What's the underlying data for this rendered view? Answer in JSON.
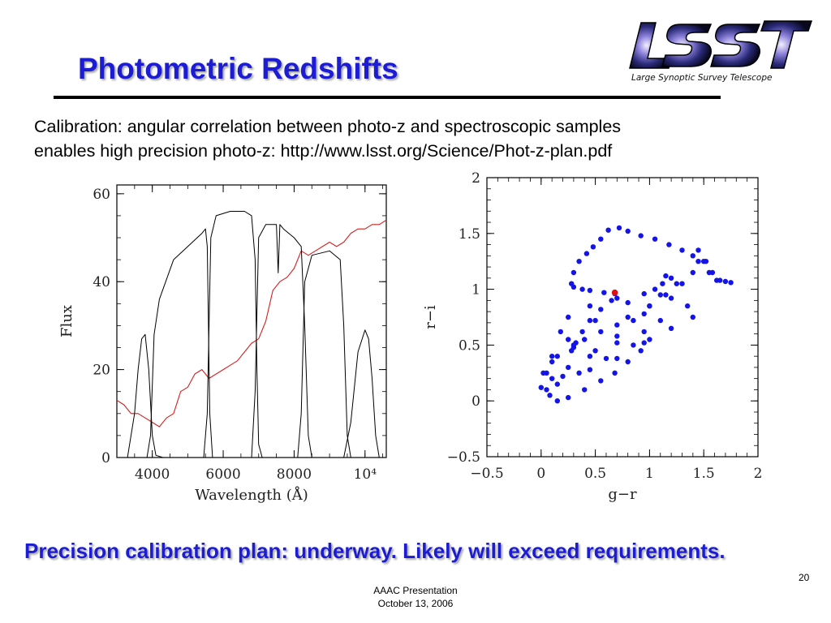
{
  "slide": {
    "title": "Photometric Redshifts",
    "intro_line1": "Calibration: angular correlation between photo-z and spectroscopic samples",
    "intro_line2": "enables high precision photo-z:   http://www.lsst.org/Science/Phot-z-plan.pdf",
    "conclusion": "Precision calibration plan:  underway.  Likely will exceed requirements.",
    "page_number": "20",
    "footer_line1": "AAAC Presentation",
    "footer_line2": "October 13, 2006",
    "logo_text": "LSST",
    "logo_tagline": "Large Synoptic Survey Telescope"
  },
  "colors": {
    "title": "#1c1cd4",
    "spectrum": "#d42020",
    "track": "#1414e6",
    "marker": "#e01010"
  },
  "chart_data": [
    {
      "type": "line",
      "xlabel": "Wavelength (Å)",
      "ylabel": "Flux",
      "xlim": [
        3000,
        10600
      ],
      "ylim": [
        0,
        62
      ],
      "x_ticks": [
        4000,
        6000,
        8000,
        10000
      ],
      "x_tick_labels": [
        "4000",
        "6000",
        "8000",
        "10⁴"
      ],
      "y_ticks": [
        0,
        20,
        40,
        60
      ],
      "y_tick_labels": [
        "0",
        "20",
        "40",
        "60"
      ],
      "series": [
        {
          "role": "spectrum",
          "color": "#d42020",
          "x": [
            3000,
            3200,
            3400,
            3600,
            3800,
            4000,
            4200,
            4400,
            4600,
            4800,
            5000,
            5200,
            5400,
            5600,
            5800,
            6000,
            6200,
            6400,
            6600,
            6800,
            7000,
            7200,
            7400,
            7600,
            7800,
            8000,
            8200,
            8400,
            8600,
            8800,
            9000,
            9200,
            9400,
            9600,
            9800,
            10000,
            10200,
            10400,
            10600
          ],
          "y": [
            13,
            12,
            10,
            10,
            9,
            8,
            7,
            9,
            10,
            15,
            16,
            19,
            20,
            18,
            19,
            20,
            21,
            22,
            24,
            26,
            27,
            31,
            38,
            40,
            41,
            43,
            47,
            46,
            47,
            48,
            49,
            48,
            49,
            51,
            52,
            52,
            53,
            53,
            54
          ]
        },
        {
          "role": "filter-u",
          "color": "#000000",
          "x": [
            3000,
            3300,
            3500,
            3600,
            3700,
            3800,
            3900,
            4000,
            4100,
            4300,
            10600
          ],
          "y": [
            0,
            0,
            10,
            20,
            27,
            28,
            20,
            5,
            0.5,
            0,
            0
          ]
        },
        {
          "role": "filter-g",
          "color": "#000000",
          "x": [
            3000,
            3850,
            3950,
            4050,
            4200,
            4600,
            5000,
            5400,
            5500,
            5550,
            5620,
            5700,
            5800,
            10600
          ],
          "y": [
            0,
            0,
            5,
            28,
            36,
            45,
            48,
            51,
            52,
            48,
            10,
            0,
            0,
            0
          ]
        },
        {
          "role": "filter-r",
          "color": "#000000",
          "x": [
            3000,
            5450,
            5550,
            5650,
            5800,
            6200,
            6600,
            6800,
            6900,
            6950,
            7000,
            7100,
            10600
          ],
          "y": [
            0,
            0,
            10,
            50,
            55,
            56,
            56,
            55,
            45,
            20,
            3,
            0,
            0
          ]
        },
        {
          "role": "filter-i",
          "color": "#000000",
          "x": [
            3000,
            6800,
            6900,
            7000,
            7200,
            7500,
            7550,
            7600,
            7700,
            8000,
            8200,
            8300,
            8400,
            8500,
            10600
          ],
          "y": [
            0,
            0,
            15,
            50,
            53,
            53,
            42,
            53,
            52,
            50,
            48,
            30,
            5,
            0,
            0
          ]
        },
        {
          "role": "filter-z",
          "color": "#000000",
          "x": [
            3000,
            8100,
            8200,
            8300,
            8500,
            9000,
            9300,
            9400,
            9500,
            9600,
            10600
          ],
          "y": [
            0,
            0,
            10,
            40,
            46,
            47,
            45,
            30,
            5,
            0,
            0
          ]
        },
        {
          "role": "filter-y",
          "color": "#000000",
          "x": [
            3000,
            9400,
            9600,
            9800,
            10000,
            10100,
            10200,
            10300,
            10400,
            10600
          ],
          "y": [
            0,
            0,
            8,
            24,
            29,
            27,
            18,
            5,
            0,
            0
          ]
        }
      ]
    },
    {
      "type": "scatter",
      "xlabel": "g−r",
      "ylabel": "r−i",
      "xlim": [
        -0.5,
        2
      ],
      "ylim": [
        -0.5,
        2
      ],
      "x_ticks": [
        -0.5,
        0,
        0.5,
        1,
        1.5,
        2
      ],
      "x_tick_labels": [
        "−0.5",
        "0",
        "0.5",
        "1",
        "1.5",
        "2"
      ],
      "y_ticks": [
        -0.5,
        0,
        0.5,
        1,
        1.5,
        2
      ],
      "y_tick_labels": [
        "−0.5",
        "0",
        "0.5",
        "1",
        "1.5",
        "2"
      ],
      "series": [
        {
          "role": "color-track",
          "color": "#1414e6",
          "x": [
            0.0,
            0.08,
            0.15,
            0.25,
            0.4,
            0.55,
            0.68,
            0.8,
            0.92,
            1.0,
            0.85,
            0.6,
            0.35,
            0.15,
            0.05,
            0.1,
            0.25,
            0.45,
            0.7,
            0.95,
            1.1,
            0.95,
            0.7,
            0.4,
            0.15,
            0.02,
            0.1,
            0.3,
            0.55,
            0.8,
            1.0,
            1.15,
            1.25,
            1.05,
            0.8,
            0.5,
            0.25,
            0.1,
            0.05,
            0.2,
            0.45,
            0.7,
            0.95,
            1.2,
            1.4,
            1.35,
            1.2,
            0.95,
            0.7,
            0.45,
            0.25,
            0.18,
            0.3,
            0.5,
            0.7,
            0.85,
            1.0,
            1.1,
            1.12,
            1.15,
            1.2,
            1.3,
            1.4,
            1.45,
            1.45,
            1.52,
            1.55,
            1.62,
            1.7,
            1.75,
            1.65,
            1.58,
            1.5,
            1.4,
            1.3,
            1.18,
            1.05,
            0.92,
            0.8,
            0.72,
            0.62,
            0.55,
            0.48,
            0.42,
            0.35,
            0.3,
            0.28,
            0.3,
            0.38,
            0.45,
            0.58,
            0.68,
            0.65,
            0.55,
            0.45,
            0.38,
            0.32,
            0.28
          ],
          "y": [
            0.12,
            0.05,
            0.0,
            0.03,
            0.1,
            0.18,
            0.25,
            0.35,
            0.45,
            0.55,
            0.5,
            0.38,
            0.25,
            0.15,
            0.1,
            0.2,
            0.3,
            0.4,
            0.52,
            0.62,
            0.72,
            0.78,
            0.68,
            0.55,
            0.4,
            0.25,
            0.35,
            0.48,
            0.62,
            0.75,
            0.85,
            0.95,
            1.05,
            1.0,
            0.88,
            0.72,
            0.55,
            0.4,
            0.25,
            0.22,
            0.28,
            0.38,
            0.52,
            0.65,
            0.75,
            0.85,
            0.92,
            0.96,
            0.92,
            0.85,
            0.75,
            0.62,
            0.5,
            0.45,
            0.58,
            0.72,
            0.85,
            0.95,
            1.05,
            1.12,
            1.1,
            1.05,
            1.15,
            1.25,
            1.35,
            1.25,
            1.15,
            1.08,
            1.07,
            1.06,
            1.08,
            1.15,
            1.25,
            1.3,
            1.35,
            1.4,
            1.45,
            1.48,
            1.52,
            1.55,
            1.53,
            1.45,
            1.38,
            1.32,
            1.25,
            1.15,
            1.05,
            1.02,
            1.0,
            0.99,
            0.97,
            0.96,
            0.9,
            0.82,
            0.72,
            0.62,
            0.52,
            0.45
          ]
        },
        {
          "role": "marker",
          "color": "#e01010",
          "x": [
            0.68
          ],
          "y": [
            0.97
          ]
        }
      ]
    }
  ]
}
